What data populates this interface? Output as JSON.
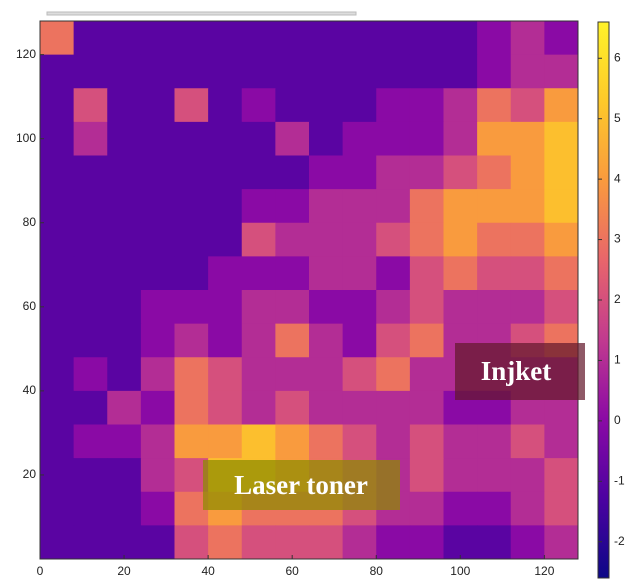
{
  "chart_data": {
    "type": "heatmap",
    "xlim": [
      0,
      128
    ],
    "ylim": [
      0,
      128
    ],
    "xticks": [
      0,
      20,
      40,
      60,
      80,
      100,
      120
    ],
    "yticks": [
      20,
      40,
      60,
      80,
      100,
      120
    ],
    "clim": [
      -2.6,
      6.6
    ],
    "cticks": [
      -2,
      -1,
      0,
      1,
      2,
      3,
      4,
      5,
      6
    ],
    "colormap": [
      "#0d0887",
      "#4c02a1",
      "#8b0aa5",
      "#c13a8f",
      "#e8656b",
      "#f99a3e",
      "#fdc92a",
      "#fff22a"
    ],
    "annotations": [
      "Laser toner",
      "Injket"
    ],
    "z": [
      [
        3,
        -1,
        -1,
        -1,
        -1,
        -1,
        -1,
        -1,
        -1,
        -1,
        -1,
        -1,
        -1,
        0,
        1,
        0
      ],
      [
        -1,
        -1,
        -1,
        -1,
        -1,
        -1,
        -1,
        -1,
        -1,
        -1,
        -1,
        -1,
        -1,
        0,
        1,
        1
      ],
      [
        -1,
        2,
        -1,
        -1,
        2,
        -1,
        0,
        -1,
        -1,
        -1,
        0,
        0,
        1,
        3,
        2,
        4
      ],
      [
        -1,
        1,
        -1,
        -1,
        -1,
        -1,
        -1,
        1,
        -1,
        0,
        0,
        0,
        1,
        4,
        4,
        5
      ],
      [
        -1,
        -1,
        -1,
        -1,
        -1,
        -1,
        -1,
        -1,
        0,
        0,
        1,
        1,
        2,
        3,
        4,
        5
      ],
      [
        -1,
        -1,
        -1,
        -1,
        -1,
        -1,
        0,
        0,
        1,
        1,
        1,
        3,
        4,
        4,
        4,
        5
      ],
      [
        -1,
        -1,
        -1,
        -1,
        -1,
        -1,
        2,
        1,
        1,
        1,
        2,
        3,
        4,
        3,
        3,
        4
      ],
      [
        -1,
        -1,
        -1,
        -1,
        -1,
        0,
        0,
        0,
        1,
        1,
        0,
        2,
        3,
        2,
        2,
        3
      ],
      [
        -1,
        -1,
        -1,
        0,
        0,
        0,
        1,
        1,
        0,
        0,
        1,
        2,
        1,
        1,
        1,
        2
      ],
      [
        -1,
        -1,
        -1,
        0,
        1,
        0,
        1,
        3,
        1,
        0,
        2,
        3,
        1,
        1,
        2,
        3
      ],
      [
        -1,
        0,
        -1,
        1,
        3,
        2,
        1,
        1,
        1,
        2,
        3,
        1,
        1,
        1,
        1,
        1
      ],
      [
        -1,
        -1,
        1,
        0,
        3,
        2,
        1,
        2,
        1,
        1,
        1,
        1,
        0,
        0,
        1,
        1
      ],
      [
        -1,
        0,
        0,
        1,
        4,
        4,
        5,
        4,
        3,
        2,
        1,
        2,
        1,
        1,
        2,
        1
      ],
      [
        -1,
        -1,
        -1,
        1,
        2,
        5,
        5,
        4,
        3,
        2,
        1,
        2,
        1,
        1,
        1,
        2
      ],
      [
        -1,
        -1,
        -1,
        0,
        3,
        4,
        3,
        3,
        3,
        2,
        1,
        1,
        0,
        0,
        1,
        2
      ],
      [
        -1,
        -1,
        -1,
        -1,
        2,
        3,
        2,
        2,
        2,
        1,
        0,
        0,
        -1,
        -1,
        0,
        1
      ]
    ]
  }
}
